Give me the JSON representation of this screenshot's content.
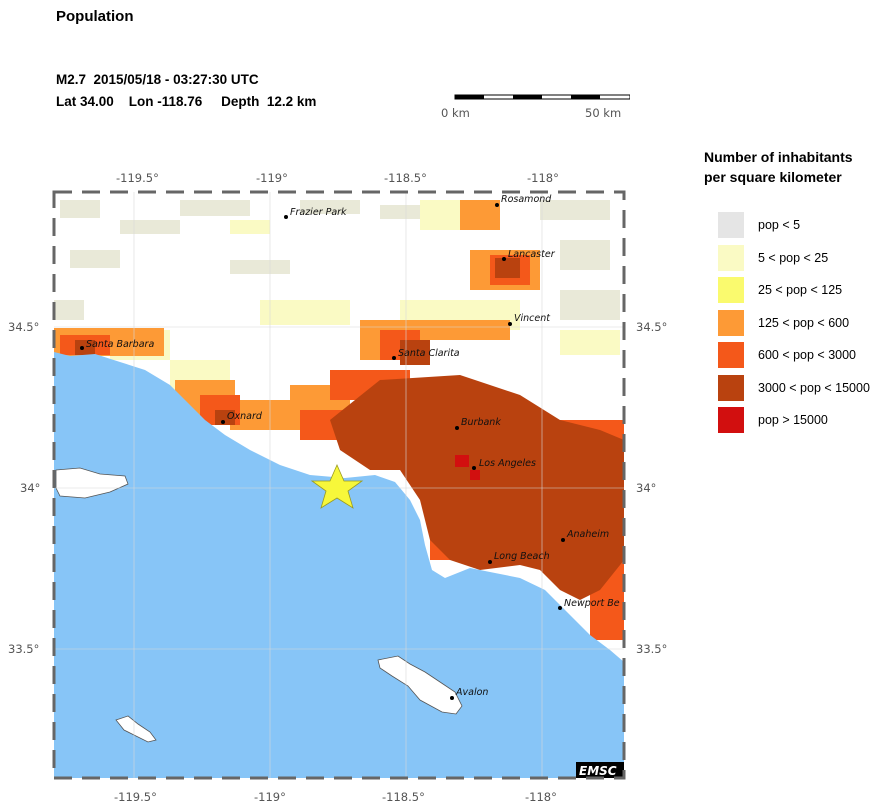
{
  "title": "Population",
  "event": {
    "line1": "M2.7  2015/05/18 - 03:27:30 UTC",
    "line2": "Lat 34.00    Lon -118.76     Depth  12.2 km"
  },
  "scale": {
    "start_label": "0 km",
    "end_label": "50 km"
  },
  "legend": {
    "title_line1": "Number of inhabitants",
    "title_line2": "per square kilometer",
    "items": [
      {
        "label": "pop < 5",
        "color": "#e5e5e5"
      },
      {
        "label": "5 < pop < 25",
        "color": "#fafac4"
      },
      {
        "label": "25 < pop < 125",
        "color": "#fafa6e"
      },
      {
        "label": "125 < pop < 600",
        "color": "#fd9a36"
      },
      {
        "label": "600 < pop < 3000",
        "color": "#f4581a"
      },
      {
        "label": "3000 < pop < 15000",
        "color": "#b9420f"
      },
      {
        "label": "pop > 15000",
        "color": "#d20f0f"
      }
    ]
  },
  "map": {
    "top_ticks": [
      "-119.5°",
      "-119°",
      "-118.5°",
      "-118°"
    ],
    "bottom_ticks": [
      "-119.5°",
      "-119°",
      "-118.5°",
      "-118°"
    ],
    "left_ticks": [
      "34.5°",
      "34°",
      "33.5°"
    ],
    "right_ticks": [
      "34.5°",
      "34°",
      "33.5°"
    ],
    "cities": [
      "Frazier Park",
      "Rosamond",
      "Lancaster",
      "Vincent",
      "Santa Clarita",
      "Santa Barbara",
      "Oxnard",
      "Burbank",
      "Los Angeles",
      "Anaheim",
      "Long Beach",
      "Newport Be",
      "Avalon"
    ],
    "epicenter": {
      "lat": 34.0,
      "lon": -118.76
    },
    "credit": "EMSC",
    "ocean_color": "#87c5f7"
  }
}
